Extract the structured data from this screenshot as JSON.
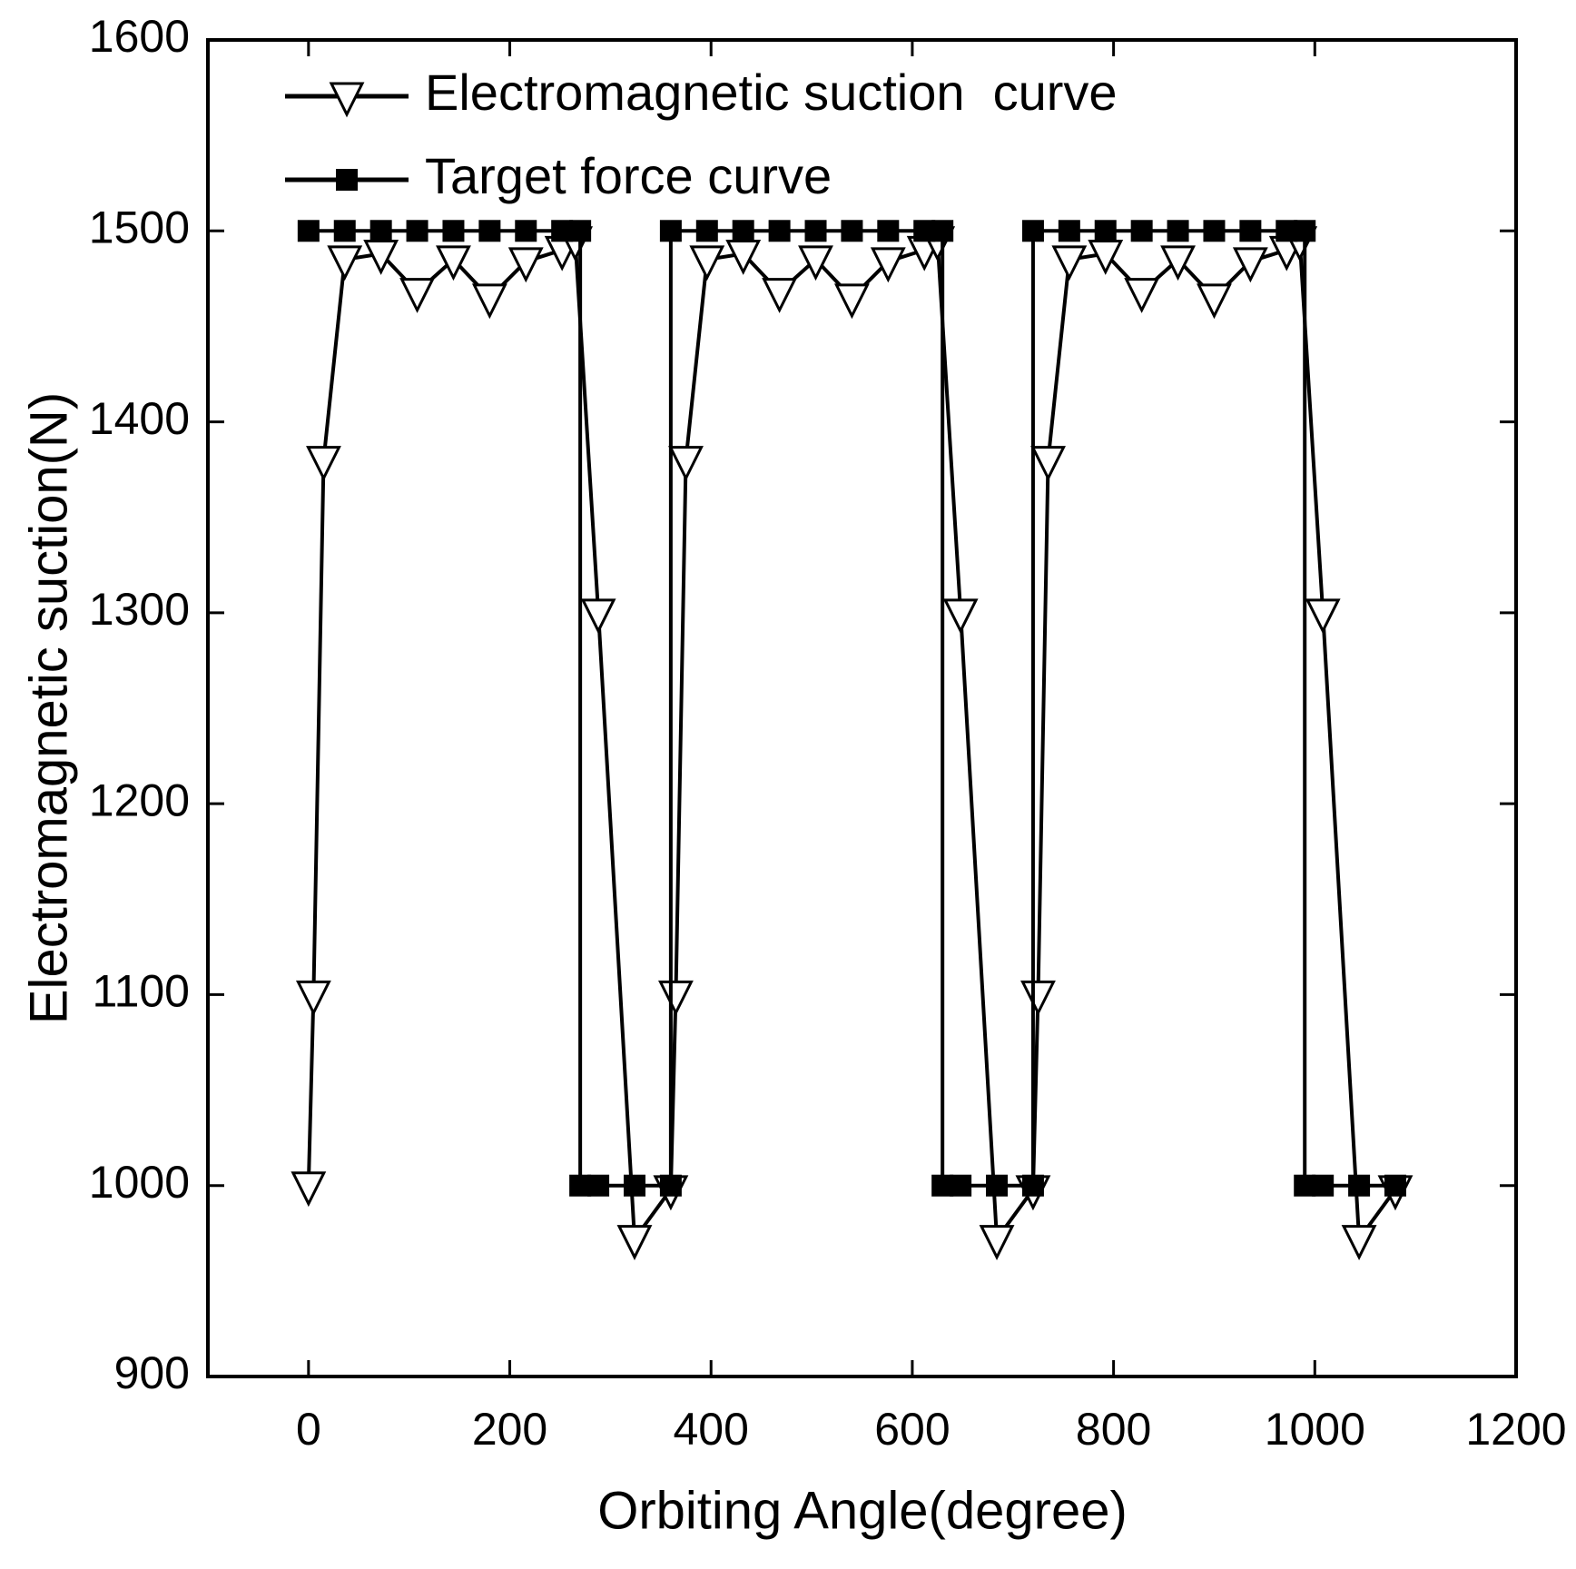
{
  "chart_data": {
    "type": "line",
    "x_label": "Orbiting Angle(degree)",
    "y_label": "Electromagnetic suction(N)",
    "xlim": [
      -100,
      1200
    ],
    "ylim": [
      900,
      1600
    ],
    "xticks": [
      0,
      200,
      400,
      600,
      800,
      1000,
      1200
    ],
    "yticks": [
      900,
      1000,
      1100,
      1200,
      1300,
      1400,
      1500,
      1600
    ],
    "legend": "upper left",
    "series": [
      {
        "name": "Electromagnetic suction  curve",
        "color": "#000000",
        "marker": "triangle-down",
        "x": [
          0,
          5,
          15,
          36,
          72,
          108,
          144,
          180,
          216,
          252,
          265,
          288,
          324,
          360,
          365,
          375,
          396,
          432,
          468,
          504,
          540,
          576,
          612,
          625,
          648,
          684,
          720,
          725,
          735,
          756,
          792,
          828,
          864,
          900,
          936,
          972,
          985,
          1008,
          1044,
          1080
        ],
        "values": [
          1000,
          1100,
          1380,
          1485,
          1488,
          1468,
          1485,
          1465,
          1484,
          1490,
          1495,
          1300,
          972,
          998,
          1100,
          1380,
          1485,
          1488,
          1468,
          1485,
          1465,
          1484,
          1490,
          1495,
          1300,
          972,
          998,
          1100,
          1380,
          1485,
          1488,
          1468,
          1485,
          1465,
          1484,
          1490,
          1495,
          1300,
          972,
          998
        ]
      },
      {
        "name": "Target force curve",
        "color": "#000000",
        "marker": "square",
        "x": [
          0,
          36,
          72,
          108,
          144,
          180,
          216,
          252,
          270,
          270,
          288,
          324,
          360,
          360,
          396,
          432,
          468,
          504,
          540,
          576,
          612,
          630,
          630,
          648,
          684,
          720,
          720,
          756,
          792,
          828,
          864,
          900,
          936,
          972,
          990,
          990,
          1008,
          1044,
          1080
        ],
        "values": [
          1500,
          1500,
          1500,
          1500,
          1500,
          1500,
          1500,
          1500,
          1500,
          1000,
          1000,
          1000,
          1000,
          1500,
          1500,
          1500,
          1500,
          1500,
          1500,
          1500,
          1500,
          1500,
          1000,
          1000,
          1000,
          1000,
          1500,
          1500,
          1500,
          1500,
          1500,
          1500,
          1500,
          1500,
          1500,
          1000,
          1000,
          1000,
          1000
        ]
      }
    ]
  }
}
